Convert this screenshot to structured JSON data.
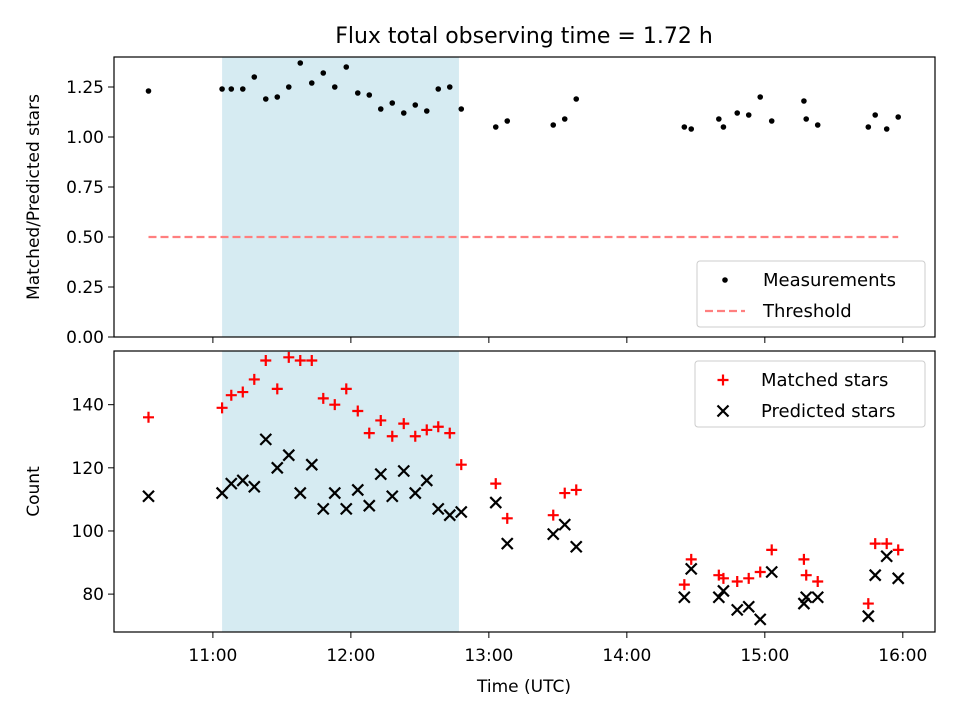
{
  "title": "Flux total observing time = 1.72 h",
  "xlabel": "Time (UTC)",
  "colors": {
    "span": "#add8e6",
    "measurements": "#000000",
    "threshold": "#ff7f7f",
    "matched": "#ff0000",
    "predicted": "#000000"
  },
  "chart_data": [
    {
      "type": "scatter",
      "ylabel": "Matched/Predicted stars",
      "ylim": [
        0,
        1.4
      ],
      "xlim": [
        "10:17",
        "16:14"
      ],
      "yticks": [
        "0.00",
        "0.25",
        "0.50",
        "0.75",
        "1.00",
        "1.25"
      ],
      "legend": "bottom-right",
      "highlight_span": [
        "11:04",
        "12:47"
      ],
      "series": [
        {
          "name": "Measurements",
          "marker": "dot",
          "points": [
            [
              "10:32",
              1.23
            ],
            [
              "11:04",
              1.24
            ],
            [
              "11:08",
              1.24
            ],
            [
              "11:13",
              1.24
            ],
            [
              "11:18",
              1.3
            ],
            [
              "11:23",
              1.19
            ],
            [
              "11:28",
              1.2
            ],
            [
              "11:33",
              1.25
            ],
            [
              "11:38",
              1.37
            ],
            [
              "11:43",
              1.27
            ],
            [
              "11:48",
              1.32
            ],
            [
              "11:53",
              1.25
            ],
            [
              "11:58",
              1.35
            ],
            [
              "12:03",
              1.22
            ],
            [
              "12:08",
              1.21
            ],
            [
              "12:13",
              1.14
            ],
            [
              "12:18",
              1.17
            ],
            [
              "12:23",
              1.12
            ],
            [
              "12:28",
              1.16
            ],
            [
              "12:33",
              1.13
            ],
            [
              "12:38",
              1.24
            ],
            [
              "12:43",
              1.25
            ],
            [
              "12:48",
              1.14
            ],
            [
              "13:03",
              1.05
            ],
            [
              "13:08",
              1.08
            ],
            [
              "13:28",
              1.06
            ],
            [
              "13:33",
              1.09
            ],
            [
              "13:38",
              1.19
            ],
            [
              "14:25",
              1.05
            ],
            [
              "14:28",
              1.04
            ],
            [
              "14:40",
              1.09
            ],
            [
              "14:42",
              1.05
            ],
            [
              "14:48",
              1.12
            ],
            [
              "14:53",
              1.11
            ],
            [
              "14:58",
              1.2
            ],
            [
              "15:03",
              1.08
            ],
            [
              "15:17",
              1.18
            ],
            [
              "15:18",
              1.09
            ],
            [
              "15:23",
              1.06
            ],
            [
              "15:45",
              1.05
            ],
            [
              "15:48",
              1.11
            ],
            [
              "15:53",
              1.04
            ],
            [
              "15:58",
              1.1
            ]
          ]
        },
        {
          "name": "Threshold",
          "marker": "dashed-line",
          "points": [
            [
              "10:32",
              0.5
            ],
            [
              "15:58",
              0.5
            ]
          ]
        }
      ]
    },
    {
      "type": "scatter",
      "ylabel": "Count",
      "ylim": [
        68,
        157
      ],
      "xlim": [
        "10:17",
        "16:14"
      ],
      "yticks": [
        "80",
        "100",
        "120",
        "140"
      ],
      "xticks": [
        "11:00",
        "12:00",
        "13:00",
        "14:00",
        "15:00",
        "16:00"
      ],
      "legend": "top-right",
      "highlight_span": [
        "11:04",
        "12:47"
      ],
      "series": [
        {
          "name": "Matched stars",
          "marker": "plus",
          "points": [
            [
              "10:32",
              136
            ],
            [
              "11:04",
              139
            ],
            [
              "11:08",
              143
            ],
            [
              "11:13",
              144
            ],
            [
              "11:18",
              148
            ],
            [
              "11:23",
              154
            ],
            [
              "11:28",
              145
            ],
            [
              "11:33",
              155
            ],
            [
              "11:38",
              154
            ],
            [
              "11:43",
              154
            ],
            [
              "11:48",
              142
            ],
            [
              "11:53",
              140
            ],
            [
              "11:58",
              145
            ],
            [
              "12:03",
              138
            ],
            [
              "12:08",
              131
            ],
            [
              "12:13",
              135
            ],
            [
              "12:18",
              130
            ],
            [
              "12:23",
              134
            ],
            [
              "12:28",
              130
            ],
            [
              "12:33",
              132
            ],
            [
              "12:38",
              133
            ],
            [
              "12:43",
              131
            ],
            [
              "12:48",
              121
            ],
            [
              "13:03",
              115
            ],
            [
              "13:08",
              104
            ],
            [
              "13:28",
              105
            ],
            [
              "13:33",
              112
            ],
            [
              "13:38",
              113
            ],
            [
              "14:25",
              83
            ],
            [
              "14:28",
              91
            ],
            [
              "14:40",
              86
            ],
            [
              "14:42",
              85
            ],
            [
              "14:48",
              84
            ],
            [
              "14:53",
              85
            ],
            [
              "14:58",
              87
            ],
            [
              "15:03",
              94
            ],
            [
              "15:17",
              91
            ],
            [
              "15:18",
              86
            ],
            [
              "15:23",
              84
            ],
            [
              "15:45",
              77
            ],
            [
              "15:48",
              96
            ],
            [
              "15:53",
              96
            ],
            [
              "15:58",
              94
            ]
          ]
        },
        {
          "name": "Predicted stars",
          "marker": "x",
          "points": [
            [
              "10:32",
              111
            ],
            [
              "11:04",
              112
            ],
            [
              "11:08",
              115
            ],
            [
              "11:13",
              116
            ],
            [
              "11:18",
              114
            ],
            [
              "11:23",
              129
            ],
            [
              "11:28",
              120
            ],
            [
              "11:33",
              124
            ],
            [
              "11:38",
              112
            ],
            [
              "11:43",
              121
            ],
            [
              "11:48",
              107
            ],
            [
              "11:53",
              112
            ],
            [
              "11:58",
              107
            ],
            [
              "12:03",
              113
            ],
            [
              "12:08",
              108
            ],
            [
              "12:13",
              118
            ],
            [
              "12:18",
              111
            ],
            [
              "12:23",
              119
            ],
            [
              "12:28",
              112
            ],
            [
              "12:33",
              116
            ],
            [
              "12:38",
              107
            ],
            [
              "12:43",
              105
            ],
            [
              "12:48",
              106
            ],
            [
              "13:03",
              109
            ],
            [
              "13:08",
              96
            ],
            [
              "13:28",
              99
            ],
            [
              "13:33",
              102
            ],
            [
              "13:38",
              95
            ],
            [
              "14:25",
              79
            ],
            [
              "14:28",
              88
            ],
            [
              "14:40",
              79
            ],
            [
              "14:42",
              81
            ],
            [
              "14:48",
              75
            ],
            [
              "14:53",
              76
            ],
            [
              "14:58",
              72
            ],
            [
              "15:03",
              87
            ],
            [
              "15:17",
              77
            ],
            [
              "15:18",
              79
            ],
            [
              "15:23",
              79
            ],
            [
              "15:45",
              73
            ],
            [
              "15:48",
              86
            ],
            [
              "15:53",
              92
            ],
            [
              "15:58",
              85
            ]
          ]
        }
      ]
    }
  ]
}
